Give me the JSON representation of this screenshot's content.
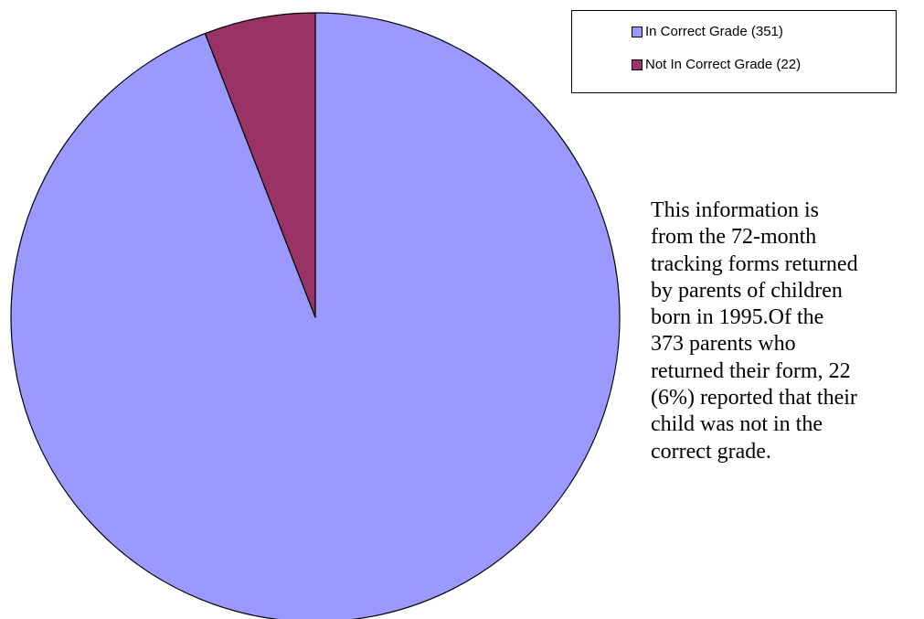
{
  "chart_data": {
    "type": "pie",
    "title": "",
    "slices": [
      {
        "label": "In Correct Grade (351)",
        "value": 351,
        "color": "#9999ff"
      },
      {
        "label": "Not In Correct Grade (22)",
        "value": 22,
        "color": "#993366"
      }
    ],
    "legend": {
      "placement": "top-right",
      "entries": [
        "In Correct Grade (351)",
        "Not In Correct Grade (22)"
      ]
    }
  },
  "note": {
    "text": "This information is\nfrom the 72-month\ntracking forms returned\nby parents of children\nborn in 1995.Of the\n373 parents who\nreturned their form, 22\n(6%) reported that their\nchild was not in the\ncorrect grade."
  }
}
